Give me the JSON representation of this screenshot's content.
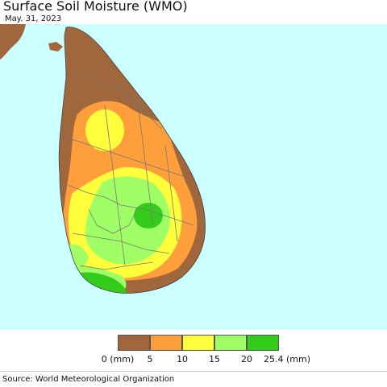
{
  "title": "Surface Soil Moisture (WMO)",
  "date": "May. 31, 2023",
  "source": "Source: World Meteorological Organization",
  "colors": {
    "sea": "#ccffff",
    "c0_5": "#a0663c",
    "c5_10": "#ff9f3c",
    "c10_15": "#ffff3c",
    "c15_20": "#a0ff66",
    "c20_25": "#33cc1a"
  },
  "legend": {
    "labels": [
      "0 (mm)",
      "5",
      "10",
      "15",
      "20",
      "25.4 (mm)"
    ],
    "bins": [
      {
        "range": "0-5",
        "color": "#a0663c"
      },
      {
        "range": "5-10",
        "color": "#ff9f3c"
      },
      {
        "range": "10-15",
        "color": "#ffff3c"
      },
      {
        "range": "15-20",
        "color": "#a0ff66"
      },
      {
        "range": "20-25.4",
        "color": "#33cc1a"
      }
    ]
  }
}
